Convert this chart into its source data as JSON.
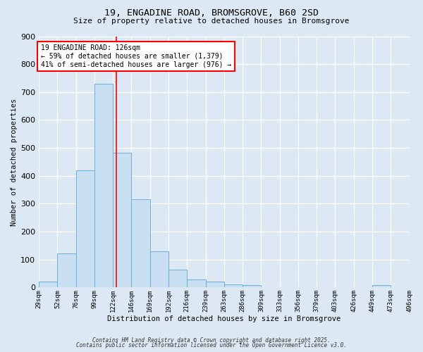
{
  "title1": "19, ENGADINE ROAD, BROMSGROVE, B60 2SD",
  "title2": "Size of property relative to detached houses in Bromsgrove",
  "xlabel": "Distribution of detached houses by size in Bromsgrove",
  "ylabel": "Number of detached properties",
  "bar_values": [
    20,
    122,
    420,
    730,
    483,
    315,
    130,
    65,
    28,
    22,
    10,
    8,
    0,
    0,
    0,
    0,
    0,
    0,
    8,
    0
  ],
  "bar_labels": [
    "29sqm",
    "52sqm",
    "76sqm",
    "99sqm",
    "122sqm",
    "146sqm",
    "169sqm",
    "192sqm",
    "216sqm",
    "239sqm",
    "263sqm",
    "286sqm",
    "309sqm",
    "333sqm",
    "356sqm",
    "379sqm",
    "403sqm",
    "426sqm",
    "449sqm",
    "473sqm",
    "496sqm"
  ],
  "bar_color": "#c9dff2",
  "bar_edge_color": "#6aaed6",
  "vline_color": "red",
  "vline_pos": 4.17,
  "annotation_title": "19 ENGADINE ROAD: 126sqm",
  "annotation_line1": "← 59% of detached houses are smaller (1,379)",
  "annotation_line2": "41% of semi-detached houses are larger (976) →",
  "annotation_box_color": "white",
  "annotation_box_edge": "red",
  "ylim": [
    0,
    900
  ],
  "yticks": [
    0,
    100,
    200,
    300,
    400,
    500,
    600,
    700,
    800,
    900
  ],
  "footer1": "Contains HM Land Registry data © Crown copyright and database right 2025.",
  "footer2": "Contains public sector information licensed under the Open Government Licence v3.0.",
  "background_color": "#dce9f5",
  "grid_color": "white",
  "title_fontsize": 9.5,
  "subtitle_fontsize": 8
}
